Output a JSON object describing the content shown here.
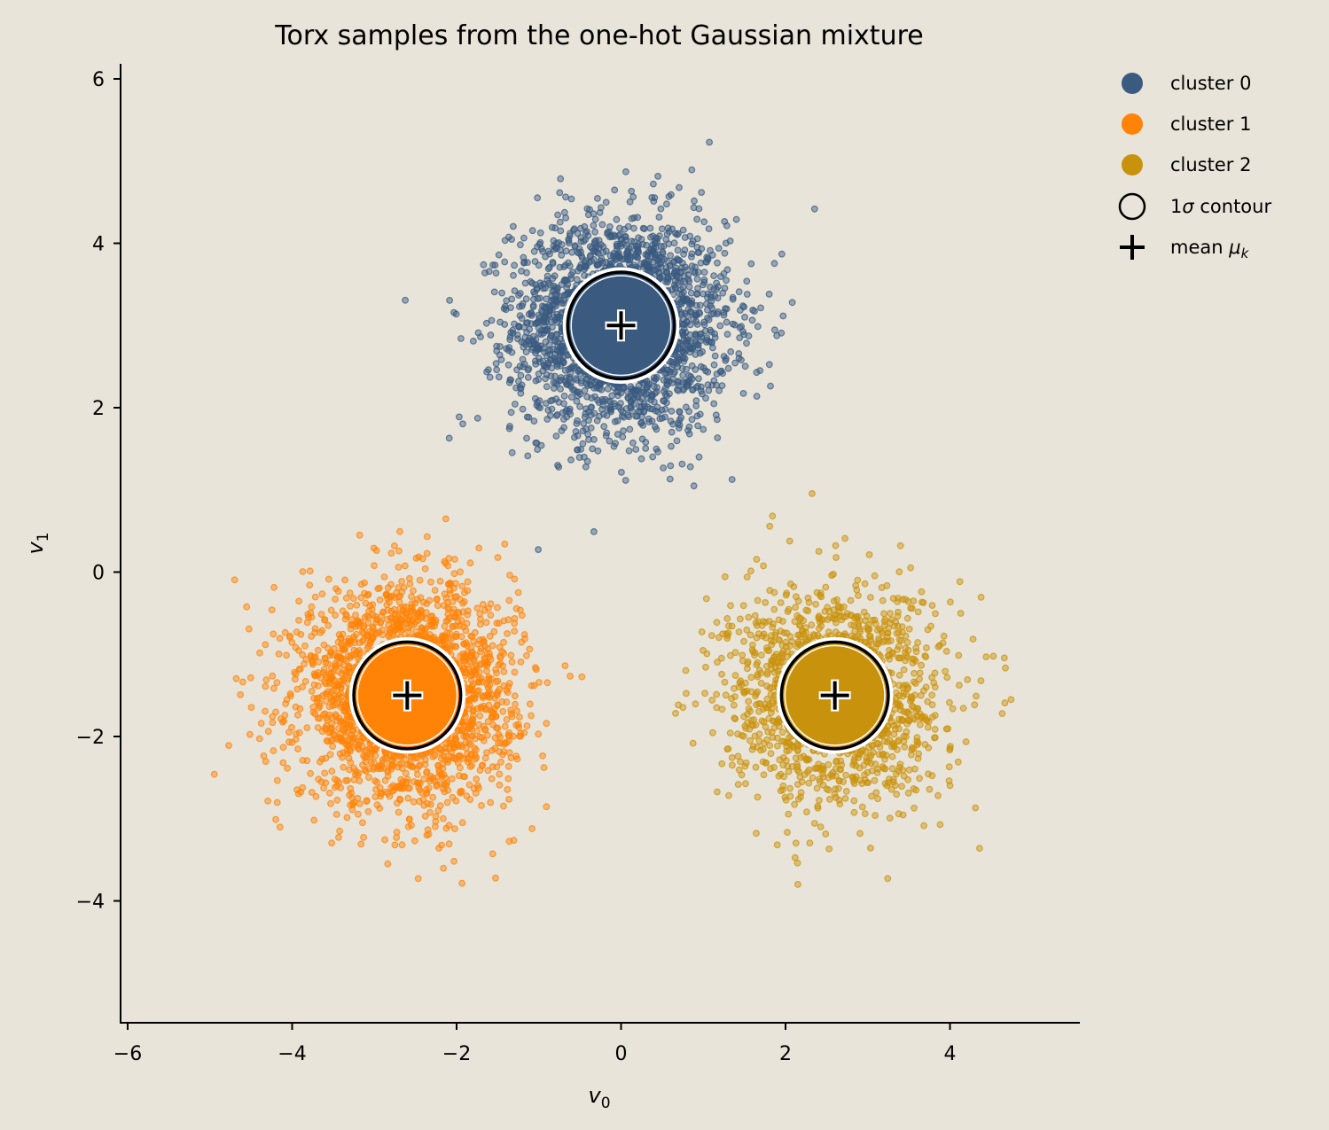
{
  "chart_data": {
    "type": "scatter",
    "title": "Torx samples from the one-hot Gaussian mixture",
    "xlabel_base": "v",
    "xlabel_sub": "0",
    "ylabel_base": "v",
    "ylabel_sub": "1",
    "xlim": [
      -6.1,
      5.6
    ],
    "ylim": [
      -5.5,
      6.2
    ],
    "xticks": [
      -6,
      -4,
      -2,
      0,
      2,
      4
    ],
    "yticks": [
      -4,
      -2,
      0,
      2,
      4,
      6
    ],
    "xtick_labels": [
      "−6",
      "−4",
      "−2",
      "0",
      "2",
      "4"
    ],
    "ytick_labels": [
      "−4",
      "−2",
      "0",
      "2",
      "4",
      "6"
    ],
    "grid": false,
    "legend_position": "outside-top-right",
    "series": [
      {
        "name": "cluster 0",
        "color": "#3a5a80",
        "mean": [
          0.0,
          3.0
        ],
        "sigma": 0.65,
        "n_points": 2500
      },
      {
        "name": "cluster 1",
        "color": "#ff8307",
        "mean": [
          -2.6,
          -1.5
        ],
        "sigma": 0.65,
        "n_points": 2500
      },
      {
        "name": "cluster 2",
        "color": "#c9920c",
        "mean": [
          2.6,
          -1.5
        ],
        "sigma": 0.65,
        "n_points": 1600
      }
    ],
    "contour": {
      "label_prefix": "1",
      "label_symbol": "σ",
      "label_suffix": " contour",
      "radius": 0.65
    },
    "mean_marker": {
      "label_prefix": "mean ",
      "label_symbol": "μ",
      "label_sub": "k"
    }
  }
}
